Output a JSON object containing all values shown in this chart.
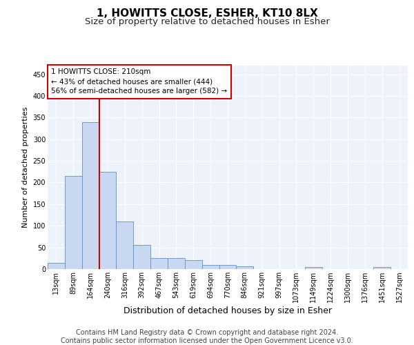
{
  "title": "1, HOWITTS CLOSE, ESHER, KT10 8LX",
  "subtitle": "Size of property relative to detached houses in Esher",
  "xlabel": "Distribution of detached houses by size in Esher",
  "ylabel": "Number of detached properties",
  "footer_line1": "Contains HM Land Registry data © Crown copyright and database right 2024.",
  "footer_line2": "Contains public sector information licensed under the Open Government Licence v3.0.",
  "bin_labels": [
    "13sqm",
    "89sqm",
    "164sqm",
    "240sqm",
    "316sqm",
    "392sqm",
    "467sqm",
    "543sqm",
    "619sqm",
    "694sqm",
    "770sqm",
    "846sqm",
    "921sqm",
    "997sqm",
    "1073sqm",
    "1149sqm",
    "1224sqm",
    "1300sqm",
    "1376sqm",
    "1451sqm",
    "1527sqm"
  ],
  "bar_values": [
    15,
    215,
    340,
    225,
    110,
    55,
    25,
    25,
    20,
    10,
    10,
    7,
    0,
    0,
    0,
    4,
    0,
    0,
    0,
    4,
    0
  ],
  "bar_color": "#c8d8f0",
  "bar_edge_color": "#6090c8",
  "vline_color": "#cc0000",
  "vline_x": 2.5,
  "annotation_line1": "1 HOWITTS CLOSE: 210sqm",
  "annotation_line2": "← 43% of detached houses are smaller (444)",
  "annotation_line3": "56% of semi-detached houses are larger (582) →",
  "annotation_box_facecolor": "#ffffff",
  "annotation_box_edgecolor": "#cc0000",
  "ylim": [
    0,
    470
  ],
  "yticks": [
    0,
    50,
    100,
    150,
    200,
    250,
    300,
    350,
    400,
    450
  ],
  "background_color": "#edf2fb",
  "fig_background": "#ffffff",
  "title_fontsize": 11,
  "subtitle_fontsize": 9.5,
  "ylabel_fontsize": 8,
  "xlabel_fontsize": 9,
  "tick_fontsize": 7,
  "annot_fontsize": 7.5,
  "footer_fontsize": 7
}
